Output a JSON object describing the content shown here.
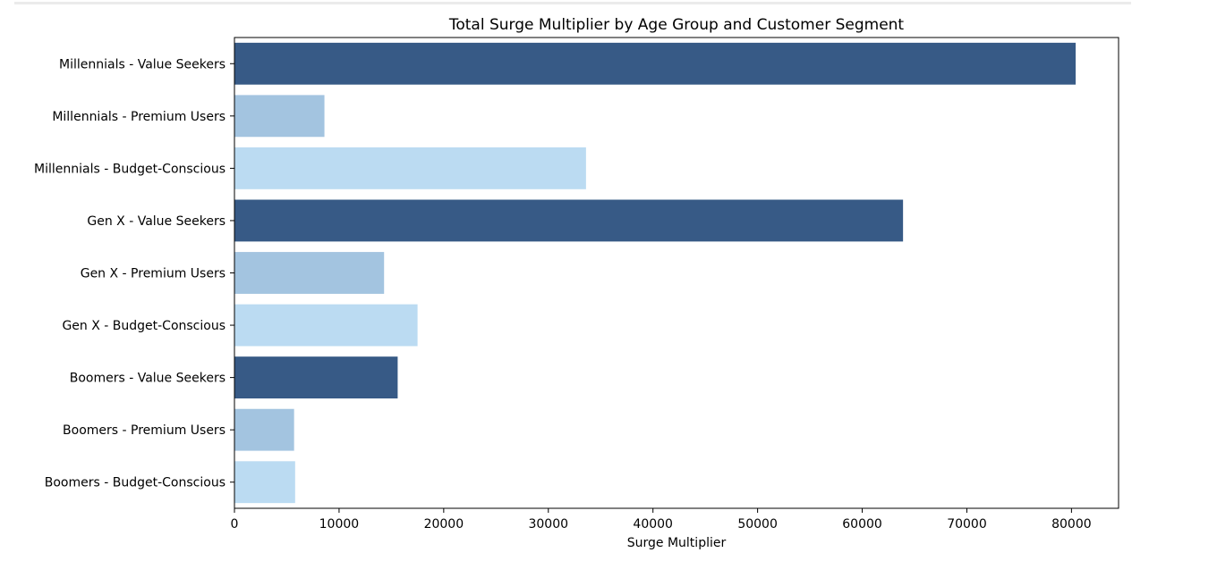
{
  "chart_data": {
    "type": "bar",
    "orientation": "horizontal",
    "title": "Total Surge Multiplier by Age Group and Customer Segment",
    "xlabel": "Surge Multiplier",
    "ylabel": "",
    "xlim": [
      0,
      84500
    ],
    "xticks": [
      0,
      10000,
      20000,
      30000,
      40000,
      50000,
      60000,
      70000,
      80000
    ],
    "grid": false,
    "categories": [
      "Millennials - Value Seekers",
      "Millennials - Premium Users",
      "Millennials - Budget-Conscious",
      "Gen X - Value Seekers",
      "Gen X - Premium Users",
      "Gen X - Budget-Conscious",
      "Boomers - Value Seekers",
      "Boomers - Premium Users",
      "Boomers - Budget-Conscious"
    ],
    "values": [
      80400,
      8600,
      33600,
      63900,
      14300,
      17500,
      15600,
      5700,
      5800
    ],
    "colors": [
      "#375a86",
      "#a3c4e0",
      "#bbdbf2",
      "#375a86",
      "#a3c4e0",
      "#bbdbf2",
      "#375a86",
      "#a3c4e0",
      "#bbdbf2"
    ]
  }
}
